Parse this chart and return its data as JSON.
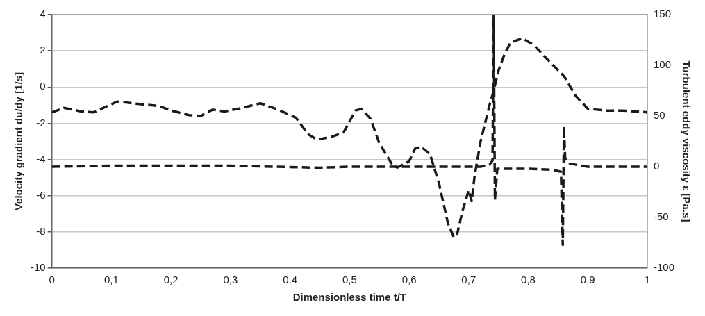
{
  "chart_data": {
    "type": "line",
    "xlabel": "Dimensionless time t/T",
    "ylabel": "Velocity gradient du/dy [1/s]",
    "y2label": "Turbulent eddy viscosity ε [Pa.s]",
    "xlim": [
      0,
      1
    ],
    "xticks": [
      0,
      {
        "value": 0.1,
        "label": "0,1"
      },
      {
        "value": 0.2,
        "label": "0,2"
      },
      {
        "value": 0.3,
        "label": "0,3"
      },
      {
        "value": 0.4,
        "label": "0,4"
      },
      {
        "value": 0.5,
        "label": "0,5"
      },
      {
        "value": 0.6,
        "label": "0,6"
      },
      {
        "value": 0.7,
        "label": "0,7"
      },
      {
        "value": 0.8,
        "label": "0,8"
      },
      {
        "value": 0.9,
        "label": "0,9"
      },
      1
    ],
    "ylim": [
      -10,
      4
    ],
    "yticks": [
      -10,
      -8,
      -6,
      -4,
      -2,
      0,
      2,
      4
    ],
    "y2lim": [
      -100,
      150
    ],
    "y2ticks": [
      -100,
      -50,
      0,
      50,
      100,
      150
    ],
    "grid": "y",
    "legend": false,
    "marker": "none",
    "series": [
      {
        "color": "#1a1a1a",
        "line_style": "dashed",
        "x": [
          0,
          0.02,
          0.05,
          0.07,
          0.09,
          0.11,
          0.15,
          0.18,
          0.2,
          0.23,
          0.25,
          0.27,
          0.29,
          0.32,
          0.35,
          0.38,
          0.41,
          0.43,
          0.445,
          0.47,
          0.49,
          0.51,
          0.52,
          0.535,
          0.55,
          0.57,
          0.58,
          0.6,
          0.61,
          0.62,
          0.635,
          0.65,
          0.665,
          0.675,
          0.68,
          0.69,
          0.7,
          0.705,
          0.71,
          0.72,
          0.735,
          0.742,
          0.75,
          0.76,
          0.77,
          0.79,
          0.81,
          0.83,
          0.86,
          0.88,
          0.9,
          0.93,
          0.96,
          1
        ],
        "values": [
          -1.4,
          -1.15,
          -1.35,
          -1.4,
          -1.1,
          -0.8,
          -0.95,
          -1.05,
          -1.3,
          -1.55,
          -1.6,
          -1.25,
          -1.35,
          -1.15,
          -0.9,
          -1.25,
          -1.7,
          -2.6,
          -2.9,
          -2.75,
          -2.5,
          -1.3,
          -1.2,
          -1.75,
          -3.1,
          -4.2,
          -4.45,
          -4.1,
          -3.4,
          -3.3,
          -3.7,
          -5.3,
          -7.5,
          -8.3,
          -8.2,
          -6.8,
          -5.7,
          -6.3,
          -4.9,
          -3,
          -1,
          -0.2,
          0.9,
          1.8,
          2.45,
          2.7,
          2.3,
          1.6,
          0.6,
          -0.5,
          -1.2,
          -1.3,
          -1.3,
          -1.4
        ]
      },
      {
        "color": "#1a1a1a",
        "line_style": "dashed",
        "axis": "y2",
        "x": [
          0,
          0.1,
          0.3,
          0.45,
          0.5,
          0.72,
          0.735,
          0.74,
          0.742,
          0.744,
          0.748,
          0.8,
          0.84,
          0.855,
          0.858,
          0.86,
          0.862,
          0.87,
          0.9,
          1
        ],
        "values": [
          0,
          1,
          1,
          -1,
          0,
          0,
          2,
          6,
          150,
          -33,
          -2,
          -2,
          -3,
          -5,
          -77,
          40,
          8,
          3,
          0,
          0
        ]
      }
    ]
  }
}
